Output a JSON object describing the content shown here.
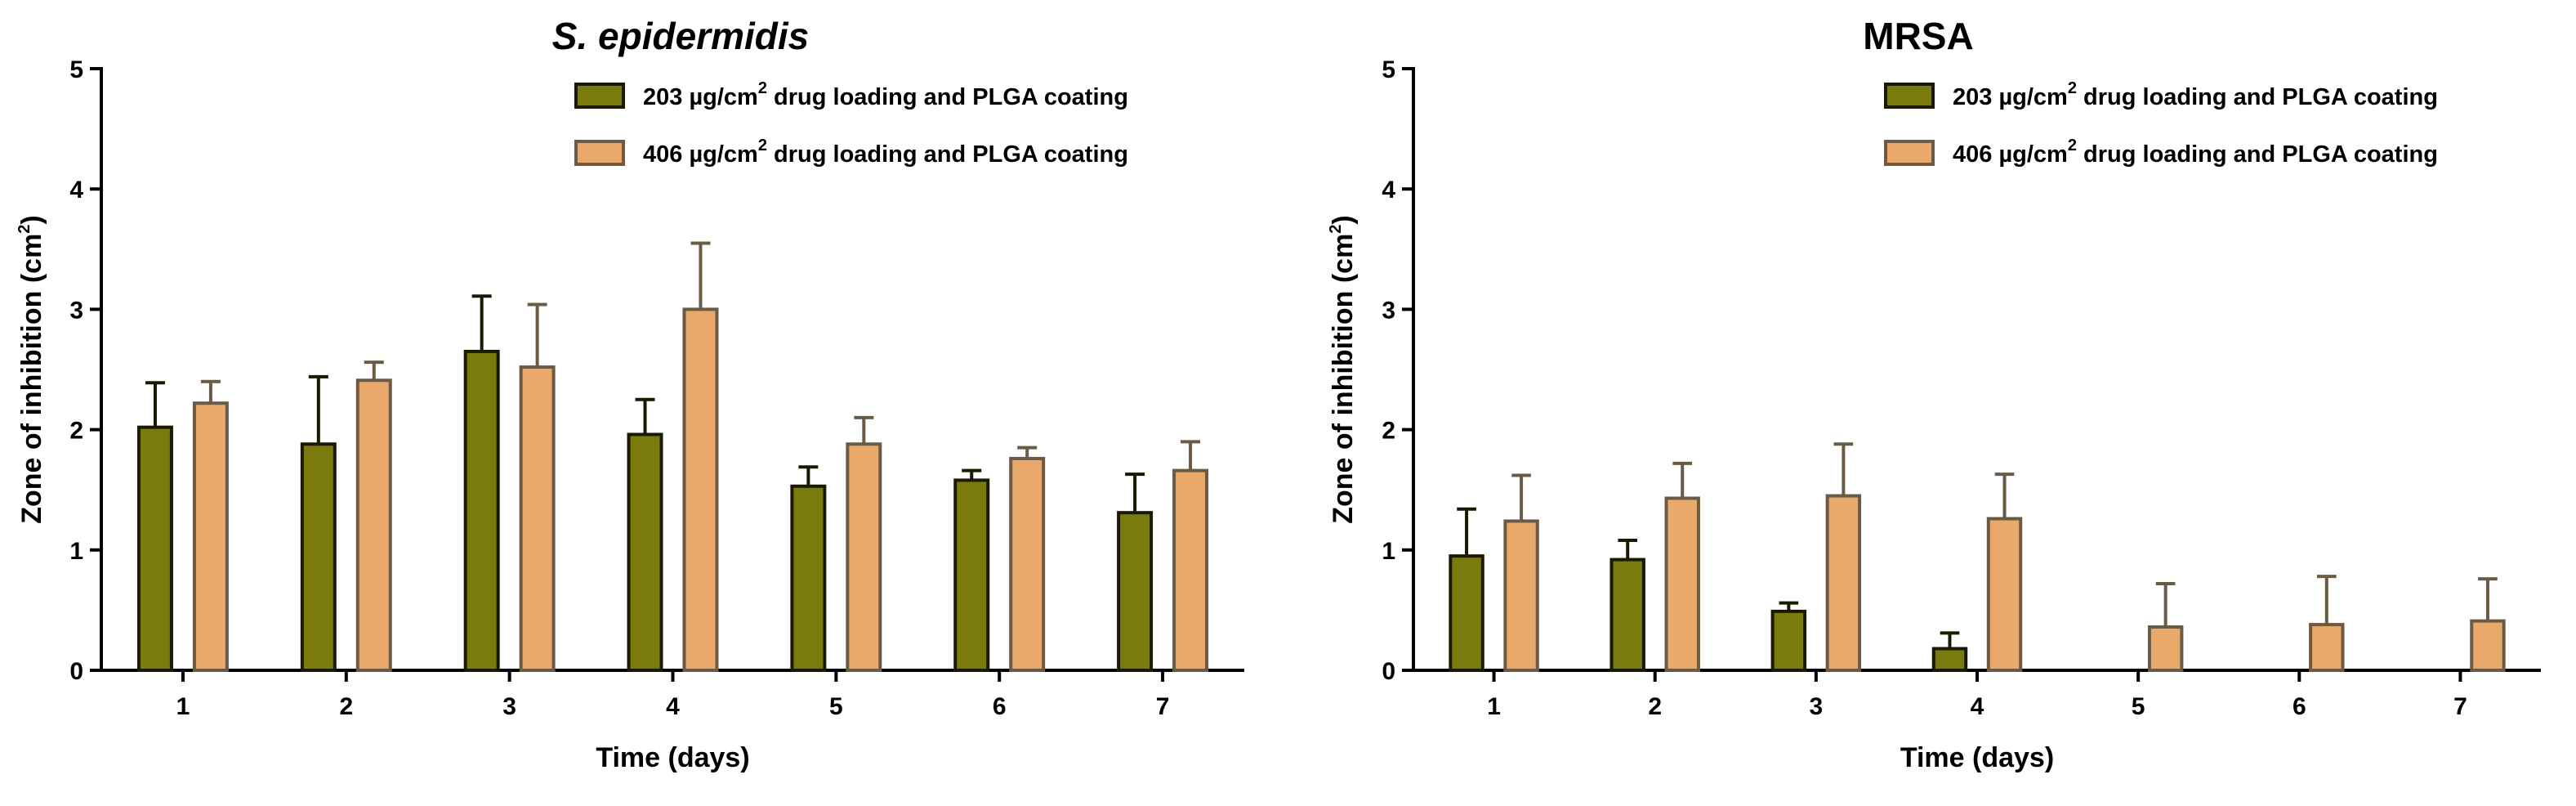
{
  "chart_data": [
    {
      "type": "bar",
      "title": "S. epidermidis",
      "title_italic": true,
      "xlabel": "Time (days)",
      "ylabel": "Zone of inhibition (cm",
      "ylabel_sup": "2",
      "ylabel_close": ")",
      "ylim": [
        0,
        5
      ],
      "yticks": [
        "0",
        "1",
        "2",
        "3",
        "4",
        "5"
      ],
      "categories": [
        "1",
        "2",
        "3",
        "4",
        "5",
        "6",
        "7"
      ],
      "legend_position": "top-right",
      "series": [
        {
          "name": "203 µg/cm",
          "name_sup": "2",
          "name_rest": " drug loading and PLGA coating",
          "color": "#7a7a0e",
          "values": [
            2.02,
            1.88,
            2.65,
            1.96,
            1.53,
            1.58,
            1.31
          ],
          "errors": [
            0.37,
            0.56,
            0.46,
            0.29,
            0.16,
            0.08,
            0.32
          ]
        },
        {
          "name": "406 µg/cm",
          "name_sup": "2",
          "name_rest": " drug loading and PLGA coating",
          "color": "#e8a96a",
          "values": [
            2.22,
            2.41,
            2.52,
            3.0,
            1.88,
            1.76,
            1.66
          ],
          "errors": [
            0.18,
            0.15,
            0.52,
            0.55,
            0.22,
            0.09,
            0.24
          ]
        }
      ]
    },
    {
      "type": "bar",
      "title": "MRSA",
      "title_italic": false,
      "xlabel": "Time (days)",
      "ylabel": "Zone of inhibition (cm",
      "ylabel_sup": "2",
      "ylabel_close": ")",
      "ylim": [
        0,
        5
      ],
      "yticks": [
        "0",
        "1",
        "2",
        "3",
        "4",
        "5"
      ],
      "categories": [
        "1",
        "2",
        "3",
        "4",
        "5",
        "6",
        "7"
      ],
      "legend_position": "top-right",
      "series": [
        {
          "name": "203 µg/cm",
          "name_sup": "2",
          "name_rest": " drug loading and PLGA coating",
          "color": "#7a7a0e",
          "values": [
            0.95,
            0.92,
            0.49,
            0.18,
            0,
            0,
            0
          ],
          "errors": [
            0.39,
            0.16,
            0.07,
            0.13,
            0,
            0,
            0
          ]
        },
        {
          "name": "406 µg/cm",
          "name_sup": "2",
          "name_rest": " drug loading and PLGA coating",
          "color": "#e8a96a",
          "values": [
            1.24,
            1.43,
            1.45,
            1.26,
            0.36,
            0.38,
            0.41
          ],
          "errors": [
            0.38,
            0.29,
            0.43,
            0.37,
            0.36,
            0.4,
            0.35
          ]
        }
      ]
    }
  ]
}
